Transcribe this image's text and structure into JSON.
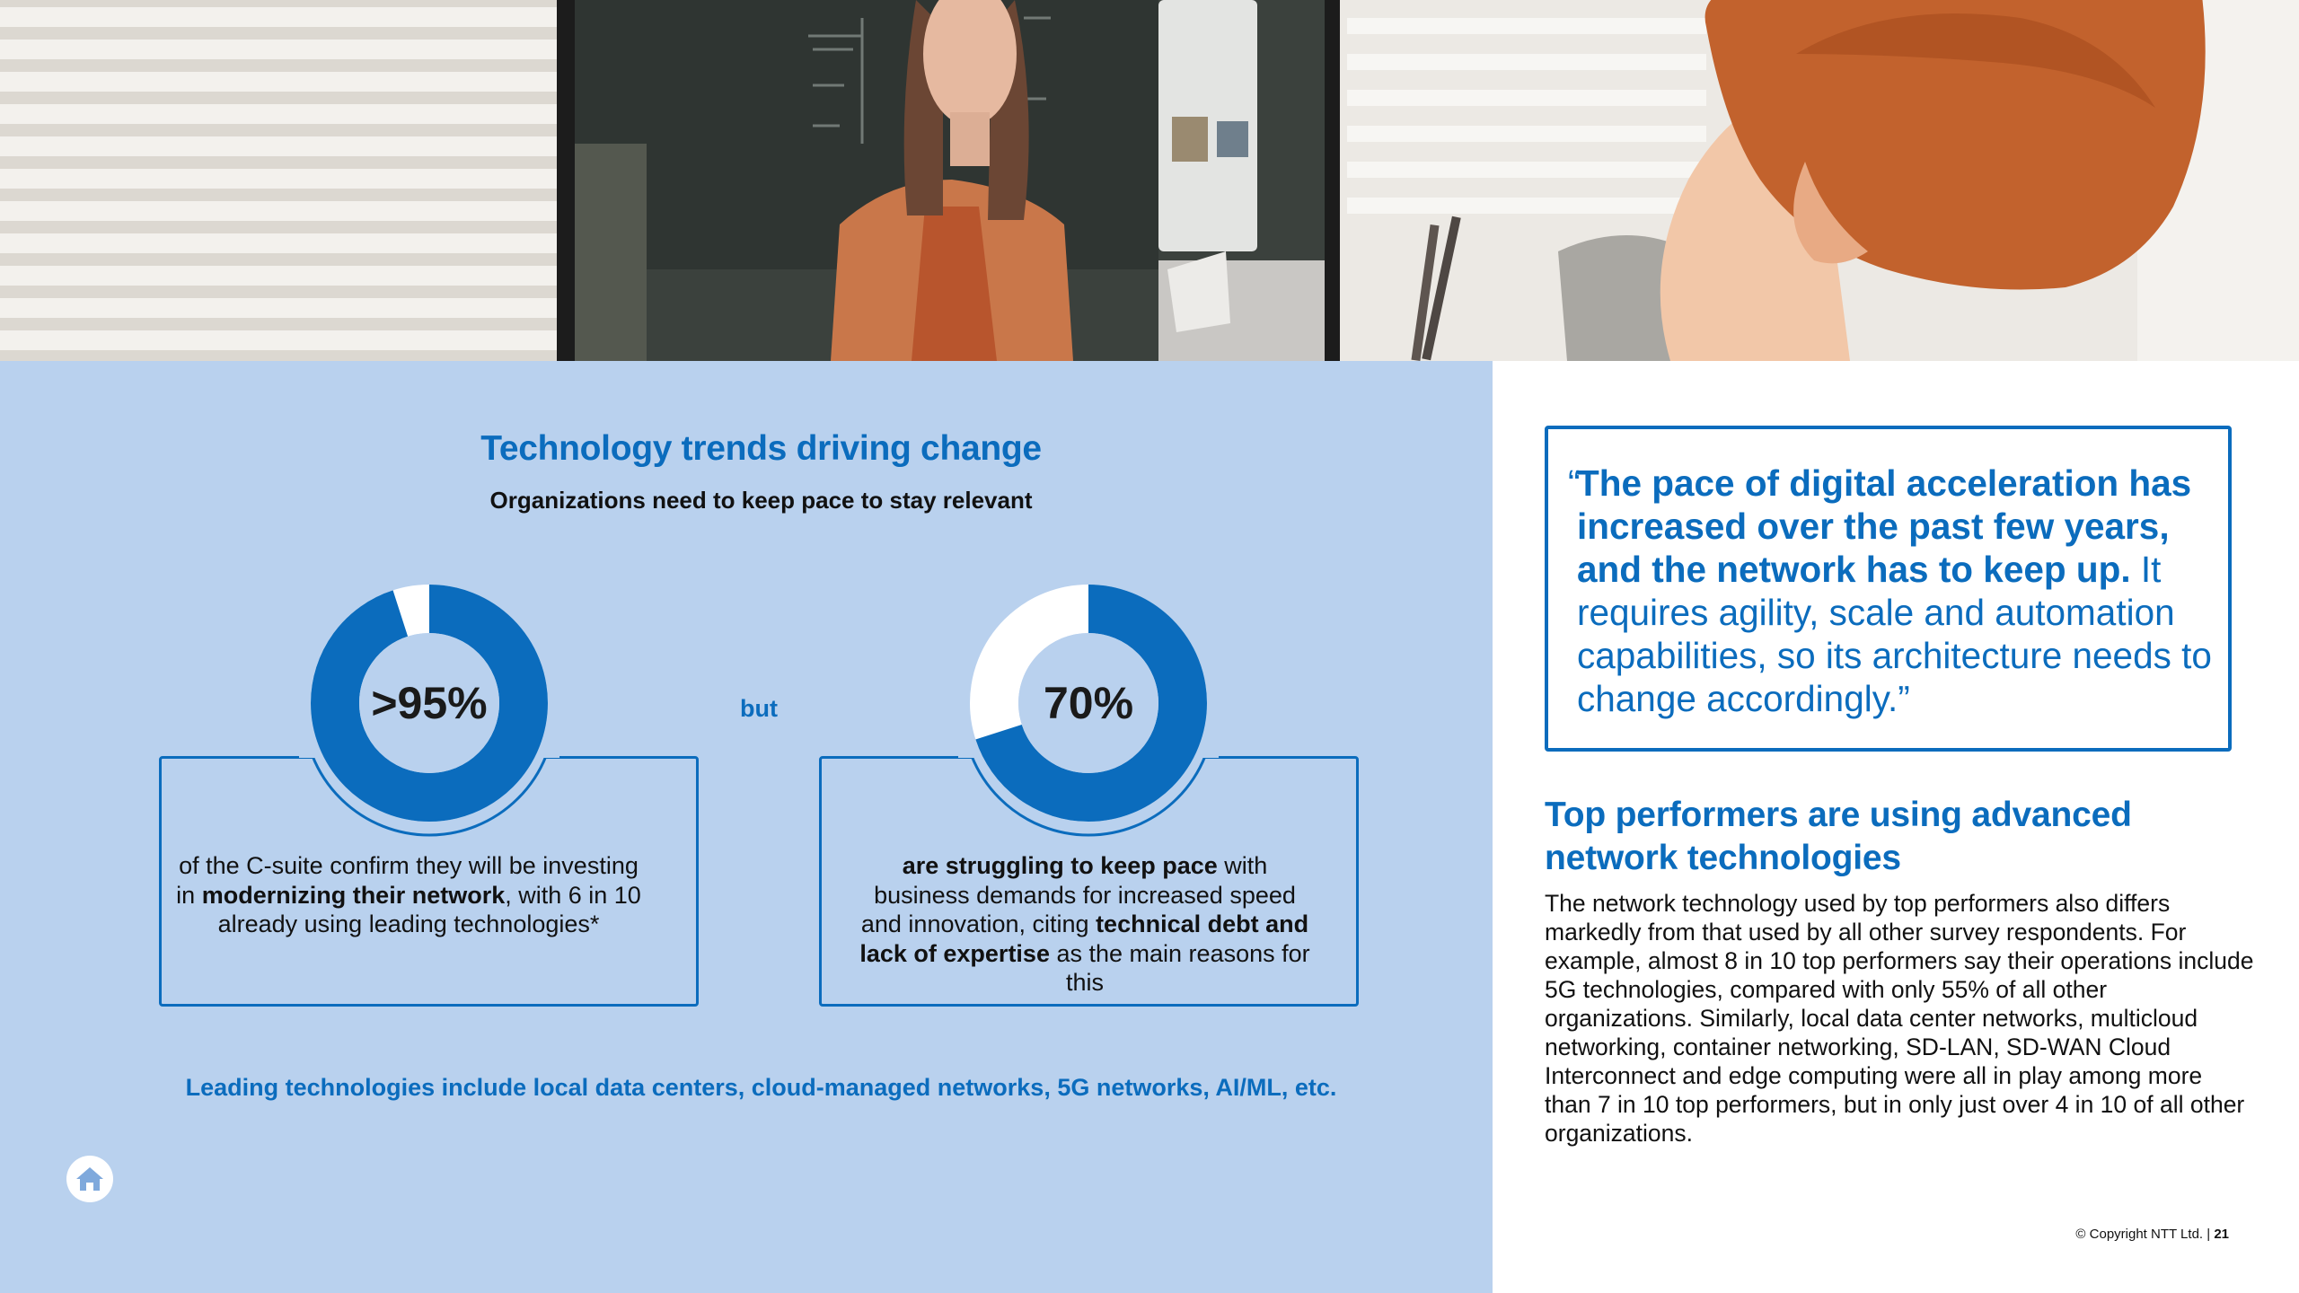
{
  "section": {
    "title": "Technology trends driving change",
    "subtitle": "Organizations need to keep pace to stay relevant"
  },
  "stats": [
    {
      "value": ">95%",
      "percent": 95,
      "text_1": "of the C-suite confirm they will be investing in ",
      "bold_1": "modernizing their network",
      "text_2": ", with 6 in 10 already using leading technologies*"
    },
    {
      "value": "70%",
      "percent": 70,
      "bold_1": "are struggling to keep pace",
      "text_1": " with business demands for increased speed and innovation, citing ",
      "bold_2": "technical debt and lack of expertise",
      "text_2": " as the main reasons for this"
    }
  ],
  "connector": "but",
  "footnote": "Leading technologies include local data centers, cloud-managed networks, 5G networks, AI/ML, etc.",
  "quote": {
    "open_mark": "“",
    "bold": "The pace of digital acceleration has increased over the past few years, and the network has to keep up.",
    "rest": " It requires agility, scale and automation capabilities, so its architecture needs to change accordingly.”"
  },
  "performers": {
    "title": "Top performers are using advanced network technologies",
    "body": "The network technology used by top performers also differs markedly from that used by all other survey respondents. For example, almost 8 in 10 top performers say their operations include 5G technologies, compared with only 55% of all other organizations. Similarly, local data center networks, multicloud networking, container networking, SD-LAN, SD-WAN Cloud Interconnect and edge computing were all in play among more than 7 in 10 top performers, but in only just over 4 in 10 of all other organizations."
  },
  "footer": {
    "copyright": "© Copyright NTT Ltd. | ",
    "page": "21"
  },
  "icons": {
    "home": "home-icon"
  },
  "colors": {
    "accent": "#0b6cbd",
    "panel": "#b9d1ee"
  }
}
